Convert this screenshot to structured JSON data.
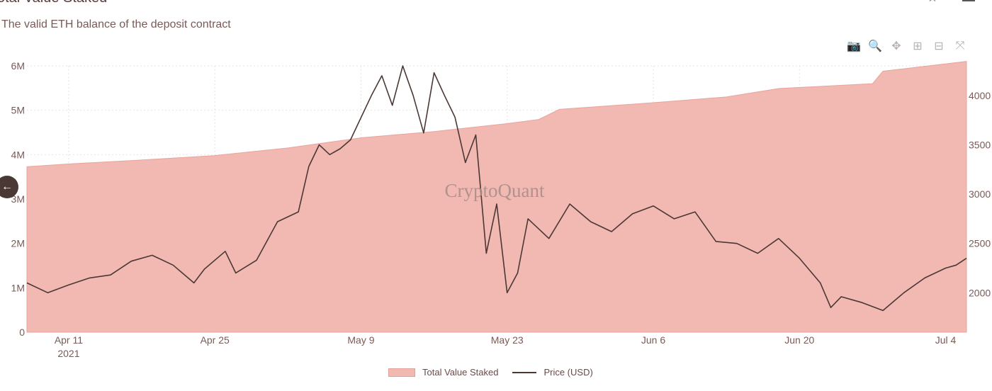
{
  "header": {
    "title": "Total Value Staked",
    "subtitle": "The valid ETH balance of the deposit contract"
  },
  "toolbar": {
    "icons": [
      "camera-icon",
      "zoom-icon",
      "pan-icon",
      "zoom-in-icon",
      "zoom-out-icon",
      "autoscale-icon"
    ]
  },
  "watermark": "CryptoQuant",
  "colors": {
    "area": "#f2b8b2",
    "area_edge": "#e8a49c",
    "line": "#4a3835"
  },
  "chart_data": {
    "type": "area",
    "start_date": "2021-04-07",
    "end_date": "2021-07-06",
    "x_tick_labels": [
      "Apr 11",
      "Apr 25",
      "May 9",
      "May 23",
      "Jun 6",
      "Jun 20",
      "Jul 4"
    ],
    "x_tick_dates": [
      "2021-04-11",
      "2021-04-25",
      "2021-05-09",
      "2021-05-23",
      "2021-06-06",
      "2021-06-20",
      "2021-07-04"
    ],
    "x_year_label": "2021",
    "y_left": {
      "ticks": [
        "0",
        "1M",
        "2M",
        "3M",
        "4M",
        "5M",
        "6M"
      ],
      "range": [
        0,
        6000000
      ]
    },
    "y_right": {
      "ticks": [
        "2000",
        "2500",
        "3000",
        "3500",
        "4000"
      ],
      "range": [
        1600,
        4300
      ]
    },
    "legend": [
      "Total Value Staked",
      "Price (USD)"
    ],
    "legend_position": "bottom",
    "grid": true,
    "series": [
      {
        "name": "Total Value Staked",
        "axis": "left",
        "style": "area",
        "points": [
          [
            "2021-04-07",
            3730000
          ],
          [
            "2021-04-11",
            3790000
          ],
          [
            "2021-04-18",
            3880000
          ],
          [
            "2021-04-25",
            3980000
          ],
          [
            "2021-05-02",
            4150000
          ],
          [
            "2021-05-09",
            4380000
          ],
          [
            "2021-05-16",
            4520000
          ],
          [
            "2021-05-23",
            4700000
          ],
          [
            "2021-05-26",
            4790000
          ],
          [
            "2021-05-28",
            5020000
          ],
          [
            "2021-06-06",
            5170000
          ],
          [
            "2021-06-13",
            5300000
          ],
          [
            "2021-06-18",
            5490000
          ],
          [
            "2021-06-27",
            5600000
          ],
          [
            "2021-06-28",
            5880000
          ],
          [
            "2021-07-06",
            6100000
          ]
        ]
      },
      {
        "name": "Price (USD)",
        "axis": "right",
        "style": "line",
        "points": [
          [
            "2021-04-07",
            2100
          ],
          [
            "2021-04-09",
            2000
          ],
          [
            "2021-04-11",
            2080
          ],
          [
            "2021-04-13",
            2150
          ],
          [
            "2021-04-15",
            2180
          ],
          [
            "2021-04-17",
            2320
          ],
          [
            "2021-04-19",
            2380
          ],
          [
            "2021-04-21",
            2280
          ],
          [
            "2021-04-23",
            2100
          ],
          [
            "2021-04-24",
            2240
          ],
          [
            "2021-04-26",
            2420
          ],
          [
            "2021-04-27",
            2200
          ],
          [
            "2021-04-29",
            2330
          ],
          [
            "2021-05-01",
            2720
          ],
          [
            "2021-05-03",
            2820
          ],
          [
            "2021-05-04",
            3280
          ],
          [
            "2021-05-05",
            3500
          ],
          [
            "2021-05-06",
            3400
          ],
          [
            "2021-05-07",
            3460
          ],
          [
            "2021-05-08",
            3550
          ],
          [
            "2021-05-10",
            4000
          ],
          [
            "2021-05-11",
            4200
          ],
          [
            "2021-05-12",
            3900
          ],
          [
            "2021-05-13",
            4300
          ],
          [
            "2021-05-14",
            4000
          ],
          [
            "2021-05-15",
            3620
          ],
          [
            "2021-05-16",
            4230
          ],
          [
            "2021-05-17",
            4000
          ],
          [
            "2021-05-18",
            3780
          ],
          [
            "2021-05-19",
            3320
          ],
          [
            "2021-05-20",
            3600
          ],
          [
            "2021-05-21",
            2400
          ],
          [
            "2021-05-22",
            2900
          ],
          [
            "2021-05-23",
            2000
          ],
          [
            "2021-05-24",
            2200
          ],
          [
            "2021-05-25",
            2750
          ],
          [
            "2021-05-27",
            2550
          ],
          [
            "2021-05-29",
            2900
          ],
          [
            "2021-05-31",
            2720
          ],
          [
            "2021-06-02",
            2620
          ],
          [
            "2021-06-04",
            2800
          ],
          [
            "2021-06-06",
            2880
          ],
          [
            "2021-06-08",
            2750
          ],
          [
            "2021-06-10",
            2820
          ],
          [
            "2021-06-12",
            2520
          ],
          [
            "2021-06-14",
            2500
          ],
          [
            "2021-06-16",
            2400
          ],
          [
            "2021-06-18",
            2550
          ],
          [
            "2021-06-20",
            2350
          ],
          [
            "2021-06-22",
            2100
          ],
          [
            "2021-06-23",
            1850
          ],
          [
            "2021-06-24",
            1960
          ],
          [
            "2021-06-26",
            1900
          ],
          [
            "2021-06-28",
            1820
          ],
          [
            "2021-06-30",
            2000
          ],
          [
            "2021-07-02",
            2150
          ],
          [
            "2021-07-04",
            2250
          ],
          [
            "2021-07-05",
            2280
          ],
          [
            "2021-07-06",
            2350
          ]
        ]
      }
    ]
  }
}
